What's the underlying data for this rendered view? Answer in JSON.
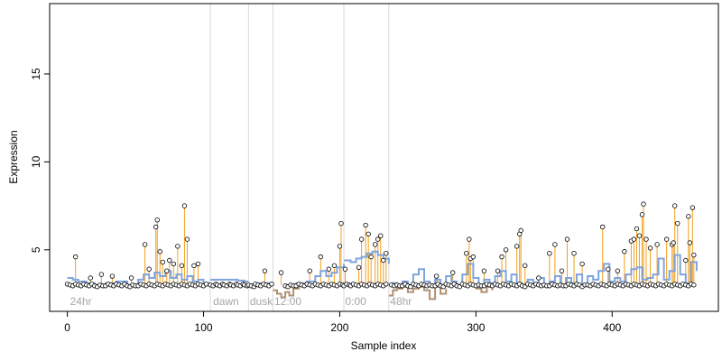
{
  "chart_data": {
    "type": "line",
    "title": "",
    "xlabel": "Sample index",
    "ylabel": "Expression",
    "xlim": [
      -13,
      478
    ],
    "ylim": [
      1.5,
      19
    ],
    "x_ticks": [
      0,
      100,
      200,
      300,
      400
    ],
    "y_ticks": [
      5,
      10,
      15
    ],
    "grid": false,
    "legend": "none",
    "baseline_value": 3.0,
    "region_boundaries": [
      105,
      133,
      151,
      203,
      236
    ],
    "region_labels": [
      {
        "text": "24hr",
        "x": 2
      },
      {
        "text": "dawn",
        "x": 107
      },
      {
        "text": "dusk",
        "x": 134
      },
      {
        "text": "12:00",
        "x": 152
      },
      {
        "text": "0:00",
        "x": 204
      },
      {
        "text": "48hr",
        "x": 237
      }
    ],
    "spikes": [
      {
        "x": 6,
        "y": 4.6
      },
      {
        "x": 17,
        "y": 3.4
      },
      {
        "x": 25,
        "y": 3.6
      },
      {
        "x": 33,
        "y": 3.5
      },
      {
        "x": 47,
        "y": 3.4
      },
      {
        "x": 57,
        "y": 5.3
      },
      {
        "x": 60,
        "y": 3.9
      },
      {
        "x": 65,
        "y": 6.3
      },
      {
        "x": 66,
        "y": 6.7
      },
      {
        "x": 68,
        "y": 4.9
      },
      {
        "x": 70,
        "y": 4.3
      },
      {
        "x": 73,
        "y": 3.8
      },
      {
        "x": 75,
        "y": 4.4
      },
      {
        "x": 78,
        "y": 4.2
      },
      {
        "x": 81,
        "y": 5.2
      },
      {
        "x": 84,
        "y": 4.1
      },
      {
        "x": 86,
        "y": 7.5
      },
      {
        "x": 88,
        "y": 5.6
      },
      {
        "x": 93,
        "y": 4.1
      },
      {
        "x": 96,
        "y": 4.2
      },
      {
        "x": 145,
        "y": 3.8
      },
      {
        "x": 157,
        "y": 3.7
      },
      {
        "x": 178,
        "y": 3.8
      },
      {
        "x": 186,
        "y": 4.6
      },
      {
        "x": 192,
        "y": 3.9
      },
      {
        "x": 196,
        "y": 4.1
      },
      {
        "x": 200,
        "y": 5.2
      },
      {
        "x": 201,
        "y": 6.5
      },
      {
        "x": 204,
        "y": 3.9
      },
      {
        "x": 214,
        "y": 4.0
      },
      {
        "x": 216,
        "y": 5.6
      },
      {
        "x": 219,
        "y": 6.4
      },
      {
        "x": 221,
        "y": 5.9
      },
      {
        "x": 223,
        "y": 4.6
      },
      {
        "x": 226,
        "y": 5.3
      },
      {
        "x": 228,
        "y": 5.6
      },
      {
        "x": 230,
        "y": 5.8
      },
      {
        "x": 232,
        "y": 4.4
      },
      {
        "x": 234,
        "y": 4.8
      },
      {
        "x": 271,
        "y": 3.5
      },
      {
        "x": 283,
        "y": 3.7
      },
      {
        "x": 293,
        "y": 4.8
      },
      {
        "x": 295,
        "y": 5.6
      },
      {
        "x": 296,
        "y": 4.5
      },
      {
        "x": 298,
        "y": 4.6
      },
      {
        "x": 306,
        "y": 3.8
      },
      {
        "x": 316,
        "y": 3.8
      },
      {
        "x": 319,
        "y": 4.6
      },
      {
        "x": 322,
        "y": 5.0
      },
      {
        "x": 330,
        "y": 5.2
      },
      {
        "x": 332,
        "y": 5.9
      },
      {
        "x": 333,
        "y": 6.1
      },
      {
        "x": 336,
        "y": 4.1
      },
      {
        "x": 346,
        "y": 3.4
      },
      {
        "x": 354,
        "y": 4.8
      },
      {
        "x": 358,
        "y": 5.3
      },
      {
        "x": 363,
        "y": 3.8
      },
      {
        "x": 367,
        "y": 5.6
      },
      {
        "x": 372,
        "y": 4.8
      },
      {
        "x": 378,
        "y": 4.2
      },
      {
        "x": 393,
        "y": 6.3
      },
      {
        "x": 397,
        "y": 3.9
      },
      {
        "x": 404,
        "y": 3.8
      },
      {
        "x": 409,
        "y": 4.9
      },
      {
        "x": 414,
        "y": 5.5
      },
      {
        "x": 416,
        "y": 5.6
      },
      {
        "x": 418,
        "y": 6.2
      },
      {
        "x": 420,
        "y": 5.8
      },
      {
        "x": 422,
        "y": 7.0
      },
      {
        "x": 423,
        "y": 7.6
      },
      {
        "x": 425,
        "y": 5.6
      },
      {
        "x": 428,
        "y": 5.1
      },
      {
        "x": 433,
        "y": 5.3
      },
      {
        "x": 440,
        "y": 5.6
      },
      {
        "x": 444,
        "y": 5.3
      },
      {
        "x": 445,
        "y": 5.4
      },
      {
        "x": 446,
        "y": 7.5
      },
      {
        "x": 448,
        "y": 6.5
      },
      {
        "x": 454,
        "y": 4.4
      },
      {
        "x": 456,
        "y": 6.9
      },
      {
        "x": 457,
        "y": 5.4
      },
      {
        "x": 459,
        "y": 7.4
      },
      {
        "x": 460,
        "y": 4.7
      }
    ],
    "series_up": [
      {
        "x": [
          0,
          4,
          8,
          14,
          20,
          28,
          36,
          44,
          52,
          56,
          60,
          64,
          68,
          72,
          76,
          80,
          84,
          88,
          92,
          96,
          100,
          104
        ],
        "y": [
          3.4,
          3.3,
          3.2,
          3.1,
          3.0,
          3.1,
          3.2,
          3.0,
          3.3,
          3.6,
          3.4,
          3.7,
          3.5,
          3.8,
          3.4,
          3.6,
          3.3,
          3.5,
          3.2,
          3.3,
          3.1,
          3.0
        ]
      },
      {
        "x": [
          105,
          110,
          115,
          120,
          125,
          130,
          133
        ],
        "y": [
          3.3,
          3.3,
          3.3,
          3.3,
          3.25,
          3.2,
          3.2
        ]
      },
      {
        "x": [
          133,
          138,
          142,
          146,
          151
        ],
        "y": [
          3.0,
          3.1,
          3.05,
          3.1,
          3.0
        ]
      },
      {
        "x": [
          160,
          168,
          176,
          182,
          186,
          190,
          194,
          198,
          203
        ],
        "y": [
          3.0,
          3.1,
          3.2,
          3.5,
          3.8,
          3.5,
          3.7,
          4.0,
          4.2
        ]
      },
      {
        "x": [
          203,
          208,
          212,
          216,
          220,
          224,
          228,
          232,
          236
        ],
        "y": [
          4.4,
          4.3,
          4.5,
          4.6,
          4.8,
          4.9,
          4.7,
          4.5,
          4.2
        ]
      },
      {
        "x": [
          238,
          242,
          246,
          250,
          254,
          258,
          262,
          266,
          270,
          274,
          278,
          282,
          286,
          290,
          294,
          298,
          302,
          306,
          310,
          314,
          318,
          322,
          326,
          330,
          334,
          338,
          342,
          346,
          350,
          354,
          358,
          362,
          366,
          370,
          374,
          378,
          382,
          386,
          390,
          394,
          398,
          402,
          406,
          410,
          414,
          418,
          422,
          426,
          430,
          434,
          438,
          442,
          446,
          450,
          454,
          458,
          462
        ],
        "y": [
          3.1,
          3.0,
          3.2,
          3.0,
          3.6,
          3.9,
          3.2,
          3.0,
          3.3,
          3.0,
          3.5,
          3.2,
          3.0,
          3.6,
          4.2,
          3.4,
          3.0,
          3.3,
          3.1,
          3.5,
          3.8,
          3.2,
          3.6,
          3.1,
          3.0,
          3.3,
          3.1,
          3.4,
          3.0,
          3.2,
          3.5,
          3.0,
          3.4,
          3.1,
          3.6,
          3.0,
          3.5,
          3.3,
          3.8,
          4.2,
          3.2,
          3.4,
          3.2,
          3.6,
          3.9,
          4.0,
          3.3,
          3.4,
          3.6,
          4.5,
          3.3,
          3.8,
          4.7,
          3.6,
          3.1,
          4.3,
          3.8
        ]
      }
    ],
    "series_down": [
      {
        "x": [
          151,
          154,
          157,
          160,
          163,
          166,
          170
        ],
        "y": [
          2.7,
          2.5,
          2.3,
          2.6,
          2.4,
          2.8,
          2.9
        ]
      },
      {
        "x": [
          236,
          239,
          242,
          246,
          250,
          254,
          258,
          262,
          266,
          270,
          274,
          278
        ],
        "y": [
          2.4,
          2.7,
          2.8,
          2.9,
          2.6,
          2.8,
          2.9,
          2.7,
          2.2,
          2.9,
          2.5,
          2.8
        ]
      },
      {
        "x": [
          300,
          304,
          308,
          312
        ],
        "y": [
          2.8,
          2.6,
          2.9,
          2.7
        ]
      }
    ],
    "colors": {
      "spike": "#f2a01e",
      "series_up": "#7fa4de",
      "series_down": "#b09070",
      "points": "#000000",
      "region_lines": "#d9d9d9",
      "region_labels": "#a6a6a6"
    }
  }
}
